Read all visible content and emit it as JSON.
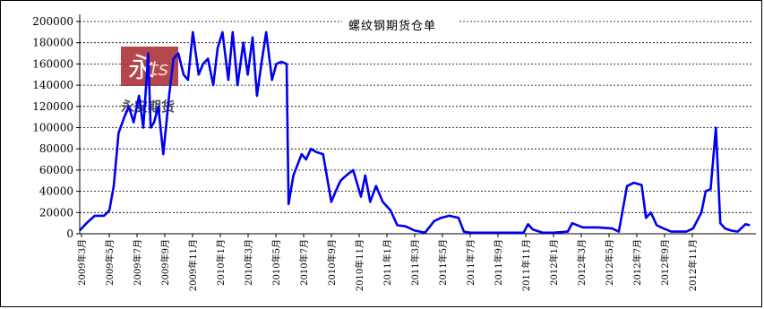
{
  "chart_data": {
    "type": "line",
    "title": "螺纹钢期货仓单",
    "xlabel": "",
    "ylabel": "",
    "ylim": [
      0,
      200000
    ],
    "yticks": [
      0,
      20000,
      40000,
      60000,
      80000,
      100000,
      120000,
      140000,
      160000,
      180000,
      200000
    ],
    "grid": true,
    "legend": "none",
    "x_tick_labels": [
      "2009年3月",
      "2009年5月",
      "2009年7月",
      "2009年9月",
      "2009年11月",
      "2010年1月",
      "2010年3月",
      "2010年5月",
      "2010年7月",
      "2010年9月",
      "2010年11月",
      "2011年1月",
      "2011年3月",
      "2011年5月",
      "2011年7月",
      "2011年9月",
      "2011年11月",
      "2012年1月",
      "2012年3月",
      "2012年5月",
      "2012年7月",
      "2012年9月",
      "2012年11月"
    ],
    "x_range": [
      "2009-03-01",
      "2012-12-15"
    ],
    "series": [
      {
        "name": "",
        "color": "#0000ee",
        "x": [
          "2009-03-01",
          "2009-03-15",
          "2009-04-01",
          "2009-04-20",
          "2009-05-01",
          "2009-05-10",
          "2009-05-20",
          "2009-06-01",
          "2009-06-10",
          "2009-06-20",
          "2009-07-01",
          "2009-07-10",
          "2009-07-20",
          "2009-07-25",
          "2009-08-01",
          "2009-08-10",
          "2009-08-20",
          "2009-09-01",
          "2009-09-10",
          "2009-09-20",
          "2009-10-01",
          "2009-10-10",
          "2009-10-20",
          "2009-11-01",
          "2009-11-10",
          "2009-11-20",
          "2009-12-01",
          "2009-12-10",
          "2009-12-20",
          "2010-01-01",
          "2010-01-10",
          "2010-01-20",
          "2010-02-01",
          "2010-02-10",
          "2010-02-20",
          "2010-03-01",
          "2010-03-10",
          "2010-03-20",
          "2010-04-01",
          "2010-04-10",
          "2010-04-20",
          "2010-05-01",
          "2010-05-05",
          "2010-05-15",
          "2010-06-01",
          "2010-06-10",
          "2010-06-20",
          "2010-07-01",
          "2010-07-15",
          "2010-08-01",
          "2010-08-10",
          "2010-08-20",
          "2010-09-01",
          "2010-09-15",
          "2010-10-01",
          "2010-10-10",
          "2010-10-20",
          "2010-11-01",
          "2010-11-15",
          "2010-12-01",
          "2010-12-15",
          "2011-01-01",
          "2011-01-20",
          "2011-02-10",
          "2011-03-01",
          "2011-03-15",
          "2011-04-01",
          "2011-04-20",
          "2011-05-01",
          "2011-05-15",
          "2011-06-01",
          "2011-07-01",
          "2011-08-01",
          "2011-09-01",
          "2011-09-10",
          "2011-09-20",
          "2011-10-10",
          "2011-11-01",
          "2011-12-01",
          "2011-12-10",
          "2012-01-01",
          "2012-02-01",
          "2012-03-01",
          "2012-03-15",
          "2012-04-01",
          "2012-04-15",
          "2012-05-01",
          "2012-05-10",
          "2012-05-20",
          "2012-06-01",
          "2012-06-15",
          "2012-07-01",
          "2012-08-01",
          "2012-08-15",
          "2012-09-01",
          "2012-09-10",
          "2012-09-20",
          "2012-10-01",
          "2012-10-10",
          "2012-10-20",
          "2012-11-01",
          "2012-11-15",
          "2012-12-01",
          "2012-12-10"
        ],
        "values": [
          3000,
          10000,
          17000,
          17000,
          22000,
          45000,
          95000,
          110000,
          120000,
          105000,
          130000,
          100000,
          170000,
          100000,
          105000,
          120000,
          75000,
          130000,
          165000,
          170000,
          150000,
          145000,
          190000,
          150000,
          160000,
          165000,
          140000,
          175000,
          190000,
          145000,
          190000,
          140000,
          180000,
          150000,
          185000,
          130000,
          160000,
          190000,
          145000,
          160000,
          162000,
          160000,
          28000,
          55000,
          75000,
          70000,
          80000,
          77000,
          75000,
          30000,
          40000,
          50000,
          55000,
          60000,
          35000,
          55000,
          30000,
          45000,
          30000,
          22000,
          8000,
          7000,
          3000,
          1000,
          12000,
          15000,
          17000,
          15000,
          2000,
          1000,
          1000,
          1000,
          1000,
          1000,
          9000,
          4000,
          1000,
          1000,
          2000,
          10000,
          6000,
          6000,
          5000,
          2000,
          45000,
          48000,
          46000,
          15000,
          20000,
          8000,
          5000,
          2000,
          2000,
          5000,
          20000,
          40000,
          42000,
          100000,
          10000,
          5000,
          3000,
          2000,
          9000,
          8000
        ]
      }
    ],
    "logo": {
      "glyph": "永",
      "badge": "ts",
      "text": "永安期货",
      "colors": [
        "#a8282e",
        "#6b1418"
      ]
    }
  }
}
